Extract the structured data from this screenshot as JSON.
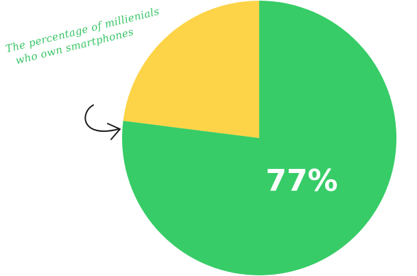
{
  "chart_data": {
    "type": "pie",
    "slices": [
      {
        "label": "",
        "value": 77,
        "color": "#37cc67"
      },
      {
        "label": "",
        "value": 23,
        "color": "#fdd447"
      }
    ],
    "data_labels": [
      {
        "text": "77%",
        "color": "#ffffff"
      }
    ],
    "annotation": {
      "lines": [
        "The percentage of millienials",
        "who own smartphones"
      ],
      "color": "#38c565"
    }
  }
}
